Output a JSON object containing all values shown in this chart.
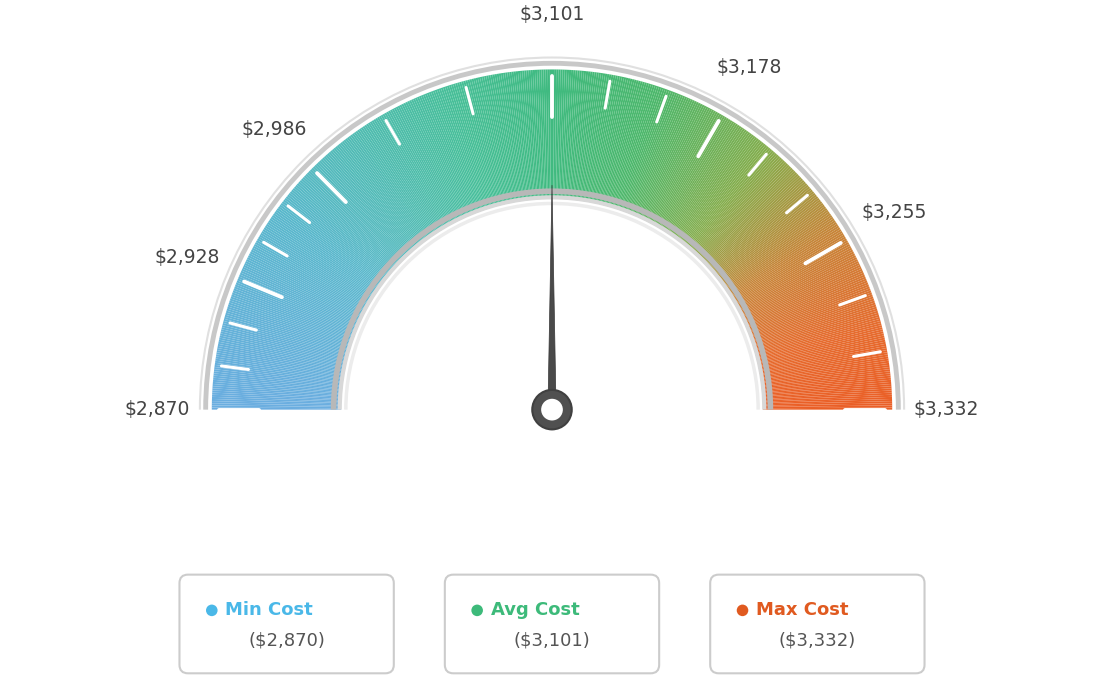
{
  "min_val": 2870,
  "avg_val": 3101,
  "max_val": 3332,
  "tick_labels": [
    "$2,870",
    "$2,928",
    "$2,986",
    "$3,101",
    "$3,178",
    "$3,255",
    "$3,332"
  ],
  "tick_values": [
    2870,
    2928,
    2986,
    3101,
    3178,
    3255,
    3332
  ],
  "legend": [
    {
      "label": "Min Cost",
      "value": "($2,870)",
      "color": "#4ab8e8"
    },
    {
      "label": "Avg Cost",
      "value": "($3,101)",
      "color": "#3dba7a"
    },
    {
      "label": "Max Cost",
      "value": "($3,332)",
      "color": "#e05a20"
    }
  ],
  "background_color": "#ffffff",
  "needle_value": 3101,
  "color_stops": [
    [
      0.0,
      [
        0.42,
        0.68,
        0.88
      ]
    ],
    [
      0.2,
      [
        0.35,
        0.72,
        0.8
      ]
    ],
    [
      0.4,
      [
        0.28,
        0.75,
        0.6
      ]
    ],
    [
      0.5,
      [
        0.25,
        0.73,
        0.5
      ]
    ],
    [
      0.6,
      [
        0.3,
        0.72,
        0.42
      ]
    ],
    [
      0.72,
      [
        0.52,
        0.68,
        0.3
      ]
    ],
    [
      0.82,
      [
        0.78,
        0.52,
        0.22
      ]
    ],
    [
      0.92,
      [
        0.9,
        0.42,
        0.18
      ]
    ],
    [
      1.0,
      [
        0.92,
        0.37,
        0.15
      ]
    ]
  ]
}
